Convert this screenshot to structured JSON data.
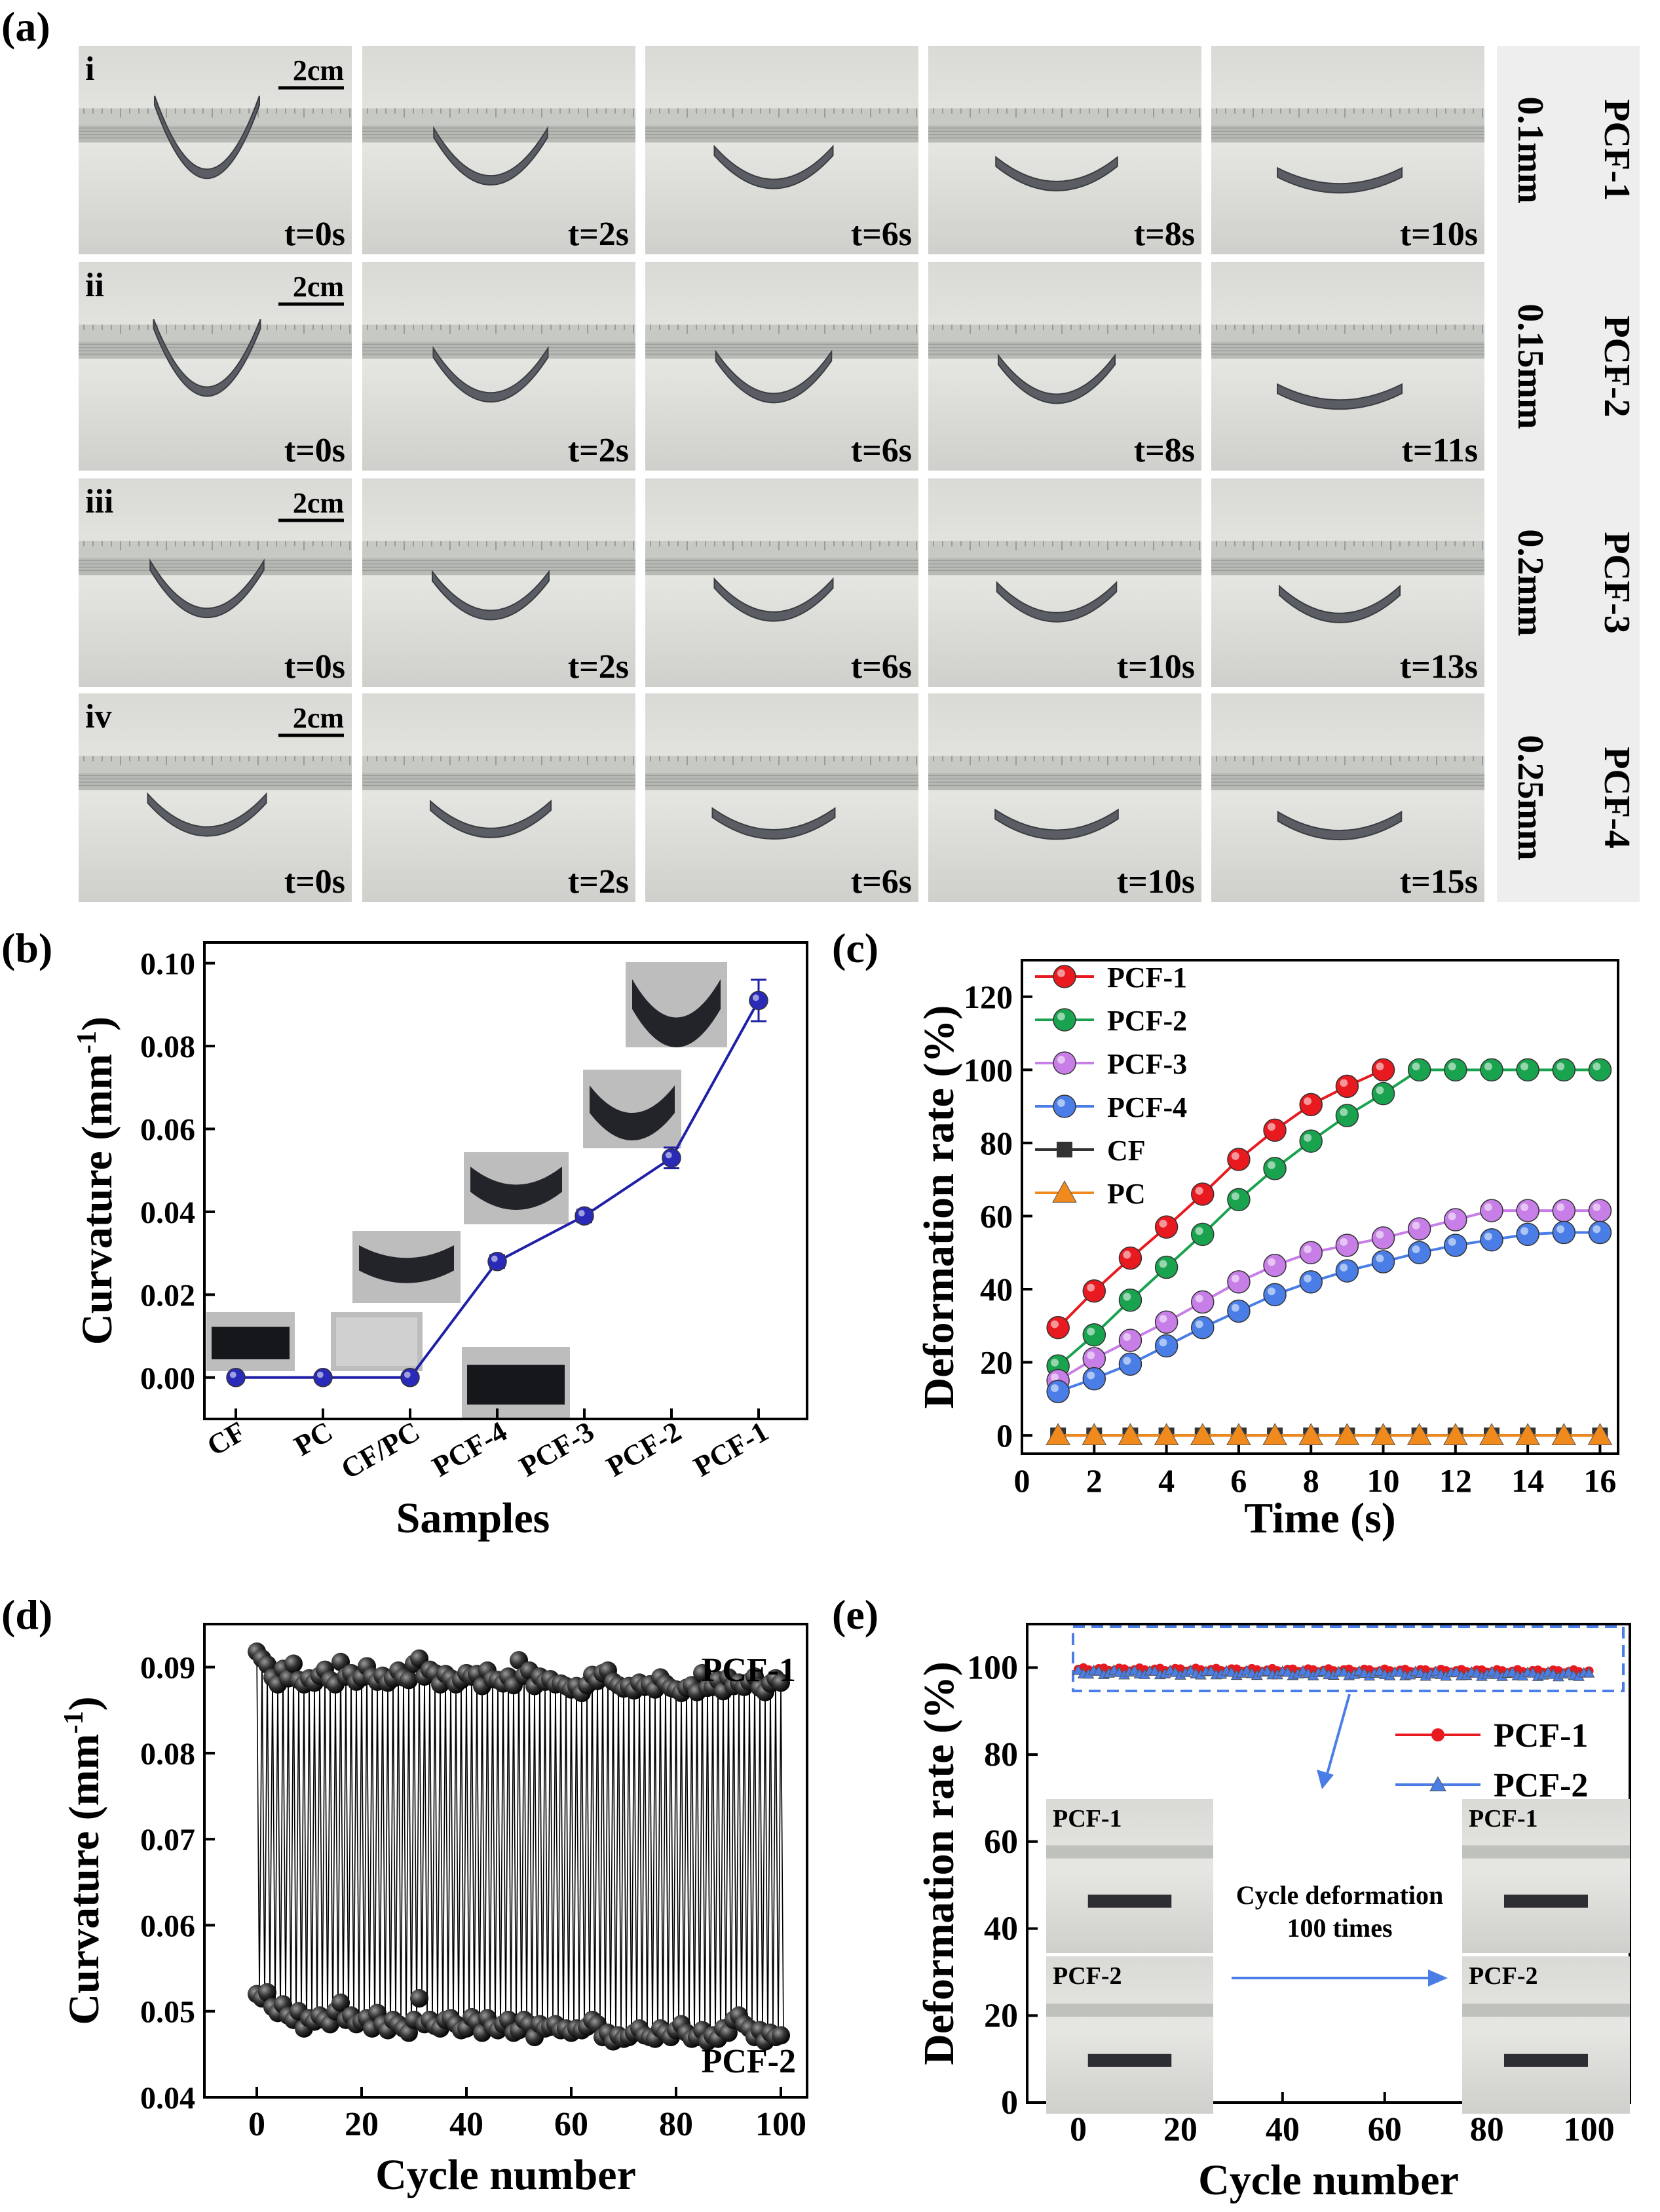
{
  "panels": {
    "a": "(a)",
    "b": "(b)",
    "c": "(c)",
    "d": "(d)",
    "e": "(e)"
  },
  "photo_grid": {
    "scale_bar": "2cm",
    "rows": [
      {
        "roman": "i",
        "sample": "PCF-1",
        "thickness": "0.1mm",
        "times": [
          "t=0s",
          "t=2s",
          "t=6s",
          "t=8s",
          "t=10s"
        ],
        "curl": [
          1.0,
          0.55,
          0.3,
          0.15,
          0
        ]
      },
      {
        "roman": "ii",
        "sample": "PCF-2",
        "thickness": "0.15mm",
        "times": [
          "t=0s",
          "t=2s",
          "t=6s",
          "t=8s",
          "t=11s"
        ],
        "curl": [
          0.9,
          0.5,
          0.45,
          0.4,
          0
        ]
      },
      {
        "roman": "iii",
        "sample": "PCF-3",
        "thickness": "0.2mm",
        "times": [
          "t=0s",
          "t=2s",
          "t=6s",
          "t=10s",
          "t=13s"
        ],
        "curl": [
          0.55,
          0.4,
          0.3,
          0.25,
          0.2
        ]
      },
      {
        "roman": "iv",
        "sample": "PCF-4",
        "thickness": "0.25mm",
        "times": [
          "t=0s",
          "t=2s",
          "t=6s",
          "t=10s",
          "t=15s"
        ],
        "curl": [
          0.3,
          0.2,
          0.1,
          0.08,
          0.05
        ]
      }
    ]
  },
  "chart_data": [
    {
      "id": "b",
      "type": "line",
      "title": "",
      "xlabel": "Samples",
      "ylabel": "Curvature (mm⁻¹)",
      "categories": [
        "CF",
        "PC",
        "CF/PC",
        "PCF-4",
        "PCF-3",
        "PCF-2",
        "PCF-1"
      ],
      "values": [
        0,
        0,
        0,
        0.028,
        0.039,
        0.053,
        0.091
      ],
      "errors": [
        0,
        0,
        0,
        0.0015,
        0.0015,
        0.0025,
        0.005
      ],
      "ylim": [
        -0.01,
        0.105
      ],
      "yticks": [
        0.0,
        0.02,
        0.04,
        0.06,
        0.08,
        0.1
      ],
      "ytick_labels": [
        "0.00",
        "0.02",
        "0.04",
        "0.06",
        "0.08",
        "0.10"
      ],
      "color": "#1f1fa8"
    },
    {
      "id": "c",
      "type": "line",
      "xlabel": "Time (s)",
      "ylabel": "Deformation rate (%)",
      "xlim": [
        0,
        16.5
      ],
      "ylim": [
        -5,
        130
      ],
      "xticks": [
        0,
        2,
        4,
        6,
        8,
        10,
        12,
        14,
        16
      ],
      "yticks": [
        0,
        20,
        40,
        60,
        80,
        100,
        120
      ],
      "legend_position": "top-left",
      "series": [
        {
          "name": "PCF-1",
          "color": "#e8191f",
          "marker": "circle",
          "x": [
            1,
            2,
            3,
            4,
            5,
            6,
            7,
            8,
            9,
            10
          ],
          "values": [
            29.5,
            39.5,
            48.5,
            57,
            66,
            75.5,
            83.5,
            90.5,
            95.5,
            100
          ]
        },
        {
          "name": "PCF-2",
          "color": "#1aa34f",
          "marker": "circle",
          "x": [
            1,
            2,
            3,
            4,
            5,
            6,
            7,
            8,
            9,
            10,
            11,
            12,
            13,
            14,
            15,
            16
          ],
          "values": [
            19,
            27.5,
            37,
            46,
            55,
            64.5,
            73,
            80.5,
            87.5,
            93.5,
            100,
            100,
            100,
            100,
            100,
            100
          ]
        },
        {
          "name": "PCF-3",
          "color": "#c77ee6",
          "marker": "circle",
          "x": [
            1,
            2,
            3,
            4,
            5,
            6,
            7,
            8,
            9,
            10,
            11,
            12,
            13,
            14,
            15,
            16
          ],
          "values": [
            15,
            21,
            26,
            31,
            36.5,
            42,
            46.5,
            50,
            52,
            54,
            56.5,
            59,
            61.5,
            61.5,
            61.5,
            61.5
          ]
        },
        {
          "name": "PCF-4",
          "color": "#4a7ee6",
          "marker": "circle",
          "x": [
            1,
            2,
            3,
            4,
            5,
            6,
            7,
            8,
            9,
            10,
            11,
            12,
            13,
            14,
            15,
            16
          ],
          "values": [
            12,
            15.5,
            19.5,
            24.5,
            29.5,
            34,
            38.5,
            42,
            45,
            47.5,
            50,
            52,
            53.5,
            55,
            55.5,
            55.5
          ]
        },
        {
          "name": "CF",
          "color": "#333333",
          "marker": "square",
          "x": [
            1,
            2,
            3,
            4,
            5,
            6,
            7,
            8,
            9,
            10,
            11,
            12,
            13,
            14,
            15,
            16
          ],
          "values": [
            0,
            0,
            0,
            0,
            0,
            0,
            0,
            0,
            0,
            0,
            0,
            0,
            0,
            0,
            0,
            0
          ]
        },
        {
          "name": "PC",
          "color": "#f08a1c",
          "marker": "triangle",
          "x": [
            1,
            2,
            3,
            4,
            5,
            6,
            7,
            8,
            9,
            10,
            11,
            12,
            13,
            14,
            15,
            16
          ],
          "values": [
            0,
            0,
            0,
            0,
            0,
            0,
            0,
            0,
            0,
            0,
            0,
            0,
            0,
            0,
            0,
            0
          ]
        }
      ]
    },
    {
      "id": "d",
      "type": "line",
      "xlabel": "Cycle number",
      "ylabel": "Curvature (mm⁻¹)",
      "xlim": [
        -10,
        105
      ],
      "ylim": [
        0.04,
        0.095
      ],
      "xticks": [
        0,
        20,
        40,
        60,
        80,
        100
      ],
      "yticks": [
        0.04,
        0.05,
        0.06,
        0.07,
        0.08,
        0.09
      ],
      "ytick_labels": [
        "0.04",
        "0.05",
        "0.06",
        "0.07",
        "0.08",
        "0.09"
      ],
      "labels": {
        "upper": "PCF-1",
        "lower": "PCF-2"
      },
      "series": [
        {
          "name": "PCF-1",
          "x_range": [
            0,
            100
          ],
          "values": [
            0.0918,
            0.091,
            0.0903,
            0.0888,
            0.088,
            0.0898,
            0.0887,
            0.0904,
            0.0885,
            0.088,
            0.0887,
            0.0882,
            0.089,
            0.0897,
            0.0885,
            0.088,
            0.0906,
            0.0889,
            0.0893,
            0.0883,
            0.0888,
            0.0901,
            0.0889,
            0.0883,
            0.089,
            0.0882,
            0.0887,
            0.0896,
            0.0888,
            0.0885,
            0.0904,
            0.091,
            0.0889,
            0.0897,
            0.0893,
            0.088,
            0.0892,
            0.0887,
            0.088,
            0.0885,
            0.0893,
            0.0889,
            0.0892,
            0.0878,
            0.0896,
            0.0886,
            0.0885,
            0.0881,
            0.0889,
            0.0879,
            0.0908,
            0.089,
            0.0896,
            0.0878,
            0.0889,
            0.0883,
            0.0886,
            0.088,
            0.0881,
            0.0878,
            0.0874,
            0.0878,
            0.087,
            0.0879,
            0.0891,
            0.0884,
            0.0893,
            0.0896,
            0.0883,
            0.0879,
            0.0875,
            0.0878,
            0.0873,
            0.0882,
            0.0877,
            0.088,
            0.0874,
            0.0888,
            0.0881,
            0.0876,
            0.0874,
            0.087,
            0.0876,
            0.0879,
            0.0871,
            0.0893,
            0.0876,
            0.0877,
            0.0885,
            0.0872,
            0.0888,
            0.0878,
            0.0882,
            0.0877,
            0.0883,
            0.0889,
            0.0876,
            0.0871,
            0.0881,
            0.0887,
            0.0882
          ]
        },
        {
          "name": "PCF-2",
          "x_range": [
            0,
            100
          ],
          "values": [
            0.052,
            0.0515,
            0.0522,
            0.0505,
            0.0498,
            0.0508,
            0.0495,
            0.049,
            0.05,
            0.048,
            0.0492,
            0.0488,
            0.0495,
            0.049,
            0.0485,
            0.05,
            0.051,
            0.049,
            0.0495,
            0.0485,
            0.0488,
            0.0492,
            0.048,
            0.0498,
            0.0485,
            0.0478,
            0.049,
            0.0485,
            0.048,
            0.0475,
            0.049,
            0.0515,
            0.0485,
            0.049,
            0.0483,
            0.048,
            0.049,
            0.0492,
            0.0485,
            0.0478,
            0.048,
            0.0493,
            0.0488,
            0.0475,
            0.0492,
            0.0482,
            0.0478,
            0.0485,
            0.049,
            0.0475,
            0.0478,
            0.049,
            0.0485,
            0.047,
            0.0485,
            0.048,
            0.0482,
            0.0485,
            0.0478,
            0.048,
            0.0475,
            0.048,
            0.0478,
            0.0482,
            0.049,
            0.0485,
            0.047,
            0.0475,
            0.0465,
            0.0472,
            0.0468,
            0.047,
            0.0475,
            0.048,
            0.0472,
            0.047,
            0.0468,
            0.048,
            0.0475,
            0.047,
            0.0478,
            0.0485,
            0.0475,
            0.0468,
            0.047,
            0.0478,
            0.0465,
            0.0472,
            0.0468,
            0.048,
            0.0475,
            0.049,
            0.0495,
            0.0485,
            0.048,
            0.047,
            0.0478,
            0.0465,
            0.0475,
            0.047,
            0.0472
          ]
        }
      ]
    },
    {
      "id": "e",
      "type": "line",
      "xlabel": "Cycle number",
      "ylabel": "Deformation rate (%)",
      "xlim": [
        -10,
        108
      ],
      "ylim": [
        0,
        110
      ],
      "xticks": [
        0,
        20,
        40,
        60,
        80,
        100
      ],
      "yticks": [
        0,
        20,
        40,
        60,
        80,
        100
      ],
      "legend_position": "right",
      "series": [
        {
          "name": "PCF-1",
          "color": "#e8191f",
          "marker": "circle",
          "x_range": [
            0,
            100
          ],
          "base": 99.6,
          "jitter": 0.6
        },
        {
          "name": "PCF-2",
          "color": "#4a7ee6",
          "marker": "triangle",
          "x_range": [
            0,
            100
          ],
          "base": 99.2,
          "jitter": 0.9
        }
      ],
      "inset": {
        "label_before_1": "PCF-1",
        "label_before_2": "PCF-2",
        "label_after_1": "PCF-1",
        "label_after_2": "PCF-2",
        "caption_line1": "Cycle deformation",
        "caption_line2": "100 times"
      }
    }
  ],
  "panel_b_insets": [
    "CF",
    "PC",
    "CF/PC",
    "PCF-4",
    "PCF-3",
    "PCF-1"
  ]
}
